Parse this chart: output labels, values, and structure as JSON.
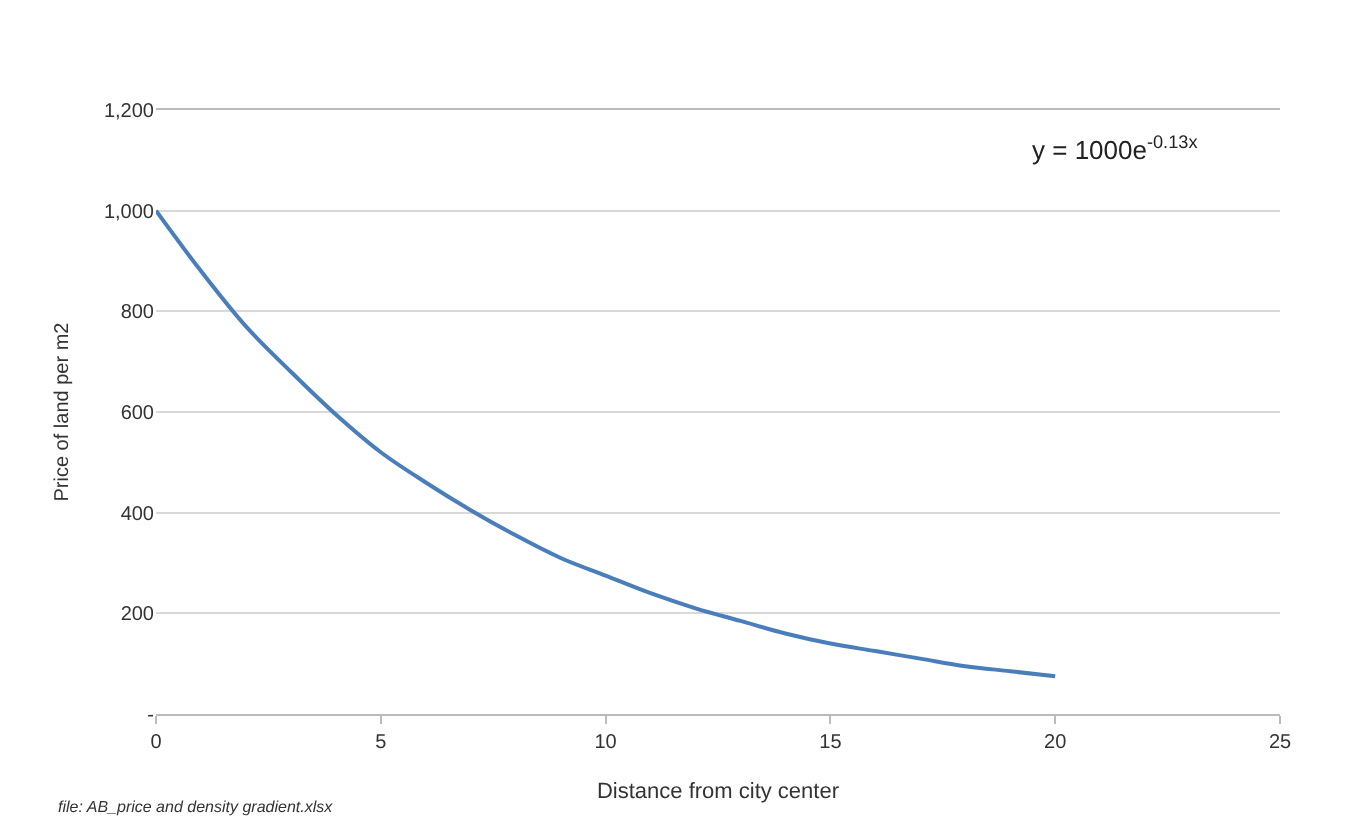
{
  "chart_data": {
    "type": "line",
    "xlabel": "Distance from city center",
    "ylabel": "Price of land per m2",
    "x": [
      0,
      1,
      2,
      3,
      4,
      5,
      6,
      7,
      8,
      9,
      10,
      11,
      12,
      13,
      14,
      15,
      16,
      17,
      18,
      19,
      20
    ],
    "series": [
      {
        "color": "#4a7ebb",
        "values": [
          1000,
          880,
          770,
          680,
          595,
          520,
          460,
          405,
          355,
          310,
          275,
          240,
          210,
          185,
          160,
          140,
          125,
          110,
          95,
          85,
          75
        ]
      }
    ],
    "xlim": [
      0,
      25
    ],
    "xticks": [
      0,
      5,
      10,
      15,
      20,
      25
    ],
    "ylim": [
      0,
      1200
    ],
    "yticks": [
      {
        "value": 0,
        "label": "-"
      },
      {
        "value": 200,
        "label": "200"
      },
      {
        "value": 400,
        "label": "400"
      },
      {
        "value": 600,
        "label": "600"
      },
      {
        "value": 800,
        "label": "800"
      },
      {
        "value": 1000,
        "label": "1,000"
      },
      {
        "value": 1200,
        "label": "1,200"
      }
    ],
    "grid": "y",
    "marker": "none",
    "line_style": "solid",
    "legend": false,
    "annotations": [
      "y = 1000e$^{-0.13x}$",
      "file: AB_price and density gradient.xlsx"
    ]
  }
}
